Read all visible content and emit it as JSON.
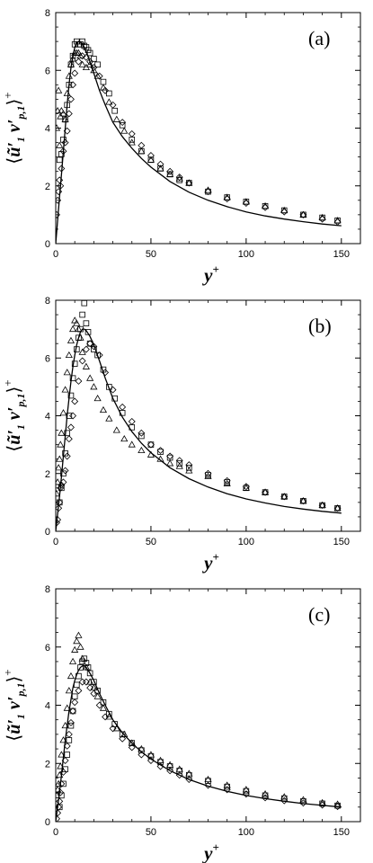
{
  "chart_data": [
    {
      "type": "scatter",
      "panel_label": "(a)",
      "xlabel": "y+",
      "ylabel": "⟨ũ′1 v′p,1⟩+",
      "xlim": [
        0,
        160
      ],
      "ylim": [
        0,
        8
      ],
      "xticks": [
        "0",
        "50",
        "100",
        "150"
      ],
      "yticks": [
        "0",
        "2",
        "4",
        "6",
        "8"
      ],
      "line": {
        "x": [
          0,
          1,
          2,
          3,
          4,
          5,
          6,
          7,
          8,
          9,
          10,
          11,
          12,
          13,
          14,
          15,
          16,
          18,
          20,
          23,
          26,
          30,
          35,
          40,
          45,
          50,
          60,
          70,
          80,
          90,
          100,
          110,
          120,
          130,
          140,
          150
        ],
        "y": [
          0,
          0.8,
          1.6,
          2.4,
          3.2,
          4.0,
          4.8,
          5.5,
          6.1,
          6.5,
          6.8,
          6.95,
          7.0,
          6.98,
          6.9,
          6.8,
          6.65,
          6.3,
          5.9,
          5.3,
          4.8,
          4.2,
          3.7,
          3.3,
          2.95,
          2.65,
          2.15,
          1.78,
          1.5,
          1.28,
          1.1,
          0.96,
          0.85,
          0.76,
          0.68,
          0.62
        ]
      },
      "series": [
        {
          "name": "triangle",
          "x": [
            0.5,
            1,
            1.5,
            2,
            2.5,
            3,
            4,
            5,
            6,
            7,
            8,
            9,
            10,
            11,
            12,
            13,
            14,
            16,
            18,
            20,
            22,
            25,
            28,
            32,
            36,
            40,
            45,
            50,
            55,
            60,
            65,
            70,
            80,
            90,
            100,
            110,
            120,
            130,
            140,
            148
          ],
          "y": [
            4.0,
            4.6,
            5.3,
            3.4,
            4.4,
            4.6,
            4.5,
            4.3,
            5.2,
            5.8,
            6.2,
            6.4,
            6.6,
            6.6,
            6.6,
            6.5,
            6.2,
            6.1,
            6.2,
            6.0,
            5.8,
            5.4,
            4.9,
            4.3,
            3.9,
            3.5,
            3.2,
            2.9,
            2.6,
            2.4,
            2.25,
            2.1,
            1.85,
            1.6,
            1.45,
            1.3,
            1.15,
            1.0,
            0.9,
            0.8
          ]
        },
        {
          "name": "square",
          "x": [
            2,
            3,
            4,
            5,
            6,
            7,
            8,
            9,
            10,
            11,
            12,
            13,
            14,
            15,
            16,
            17,
            18,
            20,
            22,
            25,
            28,
            31,
            35,
            40,
            45,
            50,
            55,
            60,
            65,
            70,
            80,
            90,
            100,
            110,
            120,
            130,
            140,
            148
          ],
          "y": [
            2.9,
            3.1,
            3.6,
            4.3,
            4.8,
            5.5,
            6.2,
            6.5,
            6.9,
            7.0,
            6.9,
            6.9,
            7.0,
            6.85,
            6.8,
            6.7,
            6.6,
            6.4,
            6.2,
            5.6,
            5.2,
            4.6,
            4.1,
            3.6,
            3.2,
            2.9,
            2.6,
            2.4,
            2.2,
            2.1,
            1.8,
            1.6,
            1.45,
            1.3,
            1.15,
            1.0,
            0.9,
            0.8
          ]
        },
        {
          "name": "diamond",
          "x": [
            0.5,
            1,
            1.5,
            2,
            2.5,
            3,
            4,
            5,
            6,
            7,
            8,
            9,
            10,
            12,
            14,
            16,
            18,
            20,
            23,
            26,
            30,
            35,
            40,
            45,
            50,
            55,
            60,
            65,
            70,
            80,
            90,
            100,
            110,
            120,
            130,
            140,
            148
          ],
          "y": [
            1.0,
            1.5,
            1.8,
            2.2,
            2.0,
            2.6,
            3.2,
            3.5,
            3.9,
            4.5,
            5.0,
            5.5,
            5.9,
            6.3,
            6.5,
            6.45,
            6.3,
            6.1,
            5.8,
            5.3,
            4.8,
            4.2,
            3.8,
            3.4,
            3.05,
            2.75,
            2.5,
            2.3,
            2.1,
            1.8,
            1.55,
            1.4,
            1.25,
            1.1,
            1.0,
            0.85,
            0.75
          ]
        }
      ]
    },
    {
      "type": "scatter",
      "panel_label": "(b)",
      "xlabel": "y+",
      "ylabel": "⟨ũ′1 v′p,1⟩+",
      "xlim": [
        0,
        160
      ],
      "ylim": [
        0,
        8
      ],
      "xticks": [
        "0",
        "50",
        "100",
        "150"
      ],
      "yticks": [
        "0",
        "2",
        "4",
        "6",
        "8"
      ],
      "line": {
        "x": [
          0,
          1,
          2,
          3,
          4,
          5,
          6,
          7,
          8,
          9,
          10,
          11,
          12,
          13,
          14,
          15,
          16,
          18,
          20,
          23,
          26,
          30,
          35,
          40,
          45,
          50,
          60,
          70,
          80,
          90,
          100,
          110,
          120,
          130,
          140,
          150
        ],
        "y": [
          0,
          0.6,
          1.2,
          1.9,
          2.6,
          3.3,
          4.0,
          4.6,
          5.2,
          5.7,
          6.1,
          6.45,
          6.7,
          6.9,
          7.0,
          7.0,
          6.95,
          6.75,
          6.45,
          5.9,
          5.3,
          4.6,
          3.95,
          3.45,
          3.05,
          2.72,
          2.2,
          1.82,
          1.53,
          1.3,
          1.12,
          0.98,
          0.86,
          0.77,
          0.69,
          0.63
        ]
      },
      "series": [
        {
          "name": "triangle",
          "x": [
            0.5,
            1,
            1.5,
            2,
            2.5,
            3,
            4,
            5,
            6,
            7,
            8,
            9,
            10,
            11,
            12,
            13,
            14,
            16,
            18,
            20,
            22,
            25,
            28,
            32,
            36,
            40,
            45,
            50,
            55,
            60,
            65,
            70,
            80,
            90,
            100,
            110,
            120,
            130,
            140,
            148
          ],
          "y": [
            1.3,
            1.7,
            2.2,
            2.5,
            3.0,
            3.4,
            4.1,
            4.9,
            5.5,
            6.1,
            6.6,
            7.0,
            7.3,
            7.2,
            7.0,
            6.7,
            6.2,
            5.7,
            5.3,
            5.0,
            4.6,
            4.2,
            3.9,
            3.5,
            3.2,
            3.0,
            2.8,
            2.65,
            2.5,
            2.35,
            2.25,
            2.1,
            1.9,
            1.65,
            1.5,
            1.35,
            1.2,
            1.05,
            0.9,
            0.8
          ]
        },
        {
          "name": "square",
          "x": [
            2,
            3,
            4,
            5,
            6,
            7,
            8,
            9,
            10,
            11,
            12,
            13,
            14,
            15,
            16,
            17,
            18,
            20,
            22,
            25,
            28,
            31,
            35,
            40,
            45,
            50,
            55,
            60,
            65,
            70,
            80,
            90,
            100,
            110,
            120,
            130,
            140,
            148
          ],
          "y": [
            1.0,
            1.5,
            2.0,
            2.7,
            3.4,
            4.0,
            4.7,
            5.3,
            5.8,
            6.3,
            6.7,
            7.0,
            7.5,
            7.9,
            7.2,
            6.9,
            6.5,
            6.3,
            6.1,
            5.6,
            5.0,
            4.6,
            4.1,
            3.6,
            3.3,
            3.0,
            2.75,
            2.55,
            2.35,
            2.2,
            1.95,
            1.7,
            1.5,
            1.35,
            1.2,
            1.05,
            0.9,
            0.8
          ]
        },
        {
          "name": "diamond",
          "x": [
            0.5,
            1,
            1.5,
            2,
            2.5,
            3,
            4,
            5,
            6,
            7,
            8,
            9,
            10,
            12,
            14,
            16,
            18,
            20,
            23,
            26,
            30,
            35,
            40,
            45,
            50,
            55,
            60,
            65,
            70,
            80,
            90,
            100,
            110,
            120,
            130,
            140,
            148
          ],
          "y": [
            0.3,
            0.4,
            0.8,
            1.0,
            1.5,
            1.6,
            1.7,
            2.1,
            2.6,
            3.2,
            3.6,
            4.0,
            4.5,
            5.2,
            5.9,
            6.3,
            6.5,
            6.4,
            6.1,
            5.5,
            4.9,
            4.3,
            3.8,
            3.4,
            3.0,
            2.8,
            2.6,
            2.45,
            2.3,
            2.0,
            1.75,
            1.55,
            1.35,
            1.2,
            1.05,
            0.9,
            0.8
          ]
        }
      ]
    },
    {
      "type": "scatter",
      "panel_label": "(c)",
      "xlabel": "y+",
      "ylabel": "⟨ũ′1 v′p,1⟩+",
      "xlim": [
        0,
        160
      ],
      "ylim": [
        0,
        8
      ],
      "xticks": [
        "0",
        "50",
        "100",
        "150"
      ],
      "yticks": [
        "0",
        "2",
        "4",
        "6",
        "8"
      ],
      "line": {
        "x": [
          0,
          1,
          2,
          3,
          4,
          5,
          6,
          7,
          8,
          9,
          10,
          11,
          12,
          13,
          14,
          15,
          16,
          18,
          20,
          23,
          26,
          30,
          35,
          40,
          45,
          50,
          60,
          70,
          80,
          90,
          100,
          110,
          120,
          130,
          140,
          150
        ],
        "y": [
          0,
          0.5,
          1.0,
          1.6,
          2.2,
          2.8,
          3.3,
          3.8,
          4.2,
          4.6,
          4.85,
          5.05,
          5.2,
          5.3,
          5.35,
          5.35,
          5.3,
          5.1,
          4.85,
          4.4,
          4.0,
          3.5,
          3.05,
          2.7,
          2.4,
          2.15,
          1.75,
          1.45,
          1.22,
          1.04,
          0.9,
          0.79,
          0.7,
          0.62,
          0.56,
          0.5
        ]
      },
      "series": [
        {
          "name": "triangle",
          "x": [
            0.5,
            1,
            1.5,
            2,
            2.5,
            3,
            4,
            5,
            6,
            7,
            8,
            9,
            10,
            11,
            12,
            13,
            14,
            16,
            18,
            20,
            22,
            25,
            28,
            32,
            36,
            40,
            45,
            50,
            55,
            60,
            65,
            70,
            80,
            90,
            100,
            110,
            120,
            130,
            140,
            148
          ],
          "y": [
            0.9,
            1.1,
            1.3,
            1.6,
            1.9,
            2.3,
            2.8,
            3.3,
            3.9,
            4.5,
            5.0,
            5.5,
            5.9,
            6.2,
            6.4,
            6.0,
            5.6,
            5.3,
            4.8,
            4.6,
            4.3,
            3.9,
            3.6,
            3.2,
            3.0,
            2.7,
            2.5,
            2.3,
            2.1,
            1.95,
            1.8,
            1.65,
            1.45,
            1.25,
            1.1,
            0.95,
            0.85,
            0.75,
            0.65,
            0.6
          ]
        },
        {
          "name": "square",
          "x": [
            2,
            3,
            4,
            5,
            6,
            7,
            8,
            9,
            10,
            11,
            12,
            13,
            14,
            15,
            16,
            17,
            18,
            20,
            22,
            25,
            28,
            31,
            35,
            40,
            45,
            50,
            55,
            60,
            65,
            70,
            80,
            90,
            100,
            110,
            120,
            130,
            140,
            148
          ],
          "y": [
            0.5,
            0.9,
            1.3,
            1.8,
            2.3,
            2.8,
            3.3,
            3.8,
            4.3,
            4.7,
            5.0,
            5.3,
            5.5,
            5.6,
            5.45,
            5.3,
            5.1,
            4.8,
            4.5,
            4.1,
            3.7,
            3.35,
            3.0,
            2.7,
            2.45,
            2.25,
            2.05,
            1.9,
            1.75,
            1.6,
            1.4,
            1.2,
            1.05,
            0.9,
            0.8,
            0.7,
            0.62,
            0.55
          ]
        },
        {
          "name": "diamond",
          "x": [
            0.5,
            1,
            1.5,
            2,
            2.5,
            3,
            4,
            5,
            6,
            7,
            8,
            9,
            10,
            12,
            14,
            16,
            18,
            20,
            23,
            26,
            30,
            35,
            40,
            45,
            50,
            55,
            60,
            65,
            70,
            80,
            90,
            100,
            110,
            120,
            130,
            140,
            148
          ],
          "y": [
            0.1,
            0.3,
            0.5,
            0.7,
            1.0,
            1.3,
            1.7,
            2.1,
            2.6,
            3.0,
            3.4,
            3.8,
            4.1,
            4.5,
            4.8,
            4.8,
            4.6,
            4.4,
            4.0,
            3.6,
            3.2,
            2.85,
            2.55,
            2.3,
            2.1,
            1.9,
            1.75,
            1.6,
            1.45,
            1.25,
            1.1,
            0.95,
            0.82,
            0.72,
            0.64,
            0.57,
            0.52
          ]
        }
      ]
    }
  ]
}
